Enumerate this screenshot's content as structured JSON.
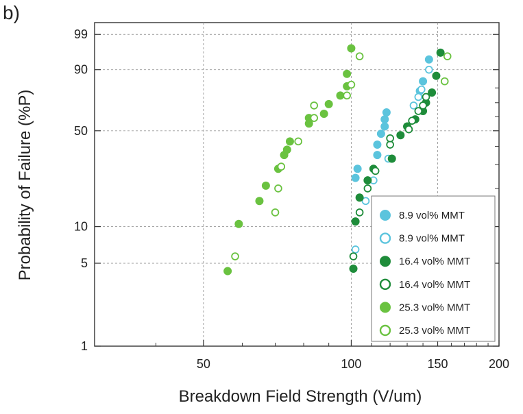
{
  "panel_label": "b)",
  "chart_data": {
    "type": "scatter",
    "title": "",
    "xlabel": "Breakdown Field Strength (V/um)",
    "ylabel": "Probability of Failure (%P)",
    "x_scale": "log",
    "y_scale": "weibull-probability",
    "xlim": [
      30,
      200
    ],
    "x_ticks": [
      50,
      100,
      150,
      200
    ],
    "y_ticks": [
      1,
      5,
      10,
      50,
      90,
      99
    ],
    "y_minor_ticks": [
      20,
      30,
      40,
      60,
      70,
      80
    ],
    "grid": true,
    "legend_position": "bottom-right",
    "series": [
      {
        "name": "8.9 vol% MMT",
        "color": "#5bc4dd",
        "marker": "filled-circle",
        "points": [
          [
            102,
            24
          ],
          [
            103,
            28
          ],
          [
            113,
            35
          ],
          [
            113,
            41
          ],
          [
            115,
            48
          ],
          [
            117,
            53
          ],
          [
            117,
            58
          ],
          [
            118,
            63
          ],
          [
            138,
            78
          ],
          [
            140,
            84
          ],
          [
            144,
            94
          ]
        ]
      },
      {
        "name": "8.9 vol% MMT",
        "color": "#5bc4dd",
        "marker": "open-circle",
        "points": [
          [
            102,
            6.5
          ],
          [
            107,
            16
          ],
          [
            111,
            23
          ],
          [
            119,
            33
          ],
          [
            134,
            68
          ],
          [
            137,
            74
          ],
          [
            139,
            79
          ],
          [
            144,
            90
          ]
        ]
      },
      {
        "name": "16.4 vol% MMT",
        "color": "#1e8c3a",
        "marker": "filled-circle",
        "points": [
          [
            101,
            4.5
          ],
          [
            102,
            11
          ],
          [
            104,
            17
          ],
          [
            108,
            23
          ],
          [
            111,
            28
          ],
          [
            121,
            33
          ],
          [
            126,
            47
          ],
          [
            130,
            53
          ],
          [
            135,
            58
          ],
          [
            140,
            64
          ],
          [
            142,
            70
          ],
          [
            146,
            77
          ],
          [
            149,
            87
          ],
          [
            152,
            96
          ]
        ]
      },
      {
        "name": "16.4 vol% MMT",
        "color": "#1e8c3a",
        "marker": "open-circle",
        "points": [
          [
            101,
            5.7
          ],
          [
            104,
            13
          ],
          [
            108,
            20
          ],
          [
            112,
            27
          ],
          [
            120,
            41
          ],
          [
            120,
            45
          ],
          [
            131,
            51
          ],
          [
            133,
            57
          ],
          [
            137,
            64
          ],
          [
            140,
            68
          ],
          [
            142,
            74
          ]
        ]
      },
      {
        "name": "25.3 vol% MMT",
        "color": "#6ac240",
        "marker": "filled-circle",
        "points": [
          [
            56,
            4.3
          ],
          [
            59,
            10.5
          ],
          [
            65,
            16
          ],
          [
            67,
            21
          ],
          [
            71,
            28
          ],
          [
            73,
            35
          ],
          [
            74,
            38
          ],
          [
            75,
            43
          ],
          [
            82,
            55
          ],
          [
            82,
            59
          ],
          [
            88,
            62
          ],
          [
            90,
            69
          ],
          [
            95,
            75
          ],
          [
            98,
            81
          ],
          [
            98,
            88
          ],
          [
            100,
            97
          ]
        ]
      },
      {
        "name": "25.3 vol% MMT",
        "color": "#6ac240",
        "marker": "open-circle",
        "points": [
          [
            58,
            5.7
          ],
          [
            70,
            13
          ],
          [
            71,
            20
          ],
          [
            72,
            29
          ],
          [
            78,
            43
          ],
          [
            84,
            59
          ],
          [
            84,
            68
          ],
          [
            98,
            75
          ],
          [
            100,
            82
          ],
          [
            104,
            95
          ],
          [
            155,
            84
          ],
          [
            157,
            95
          ]
        ]
      }
    ]
  }
}
